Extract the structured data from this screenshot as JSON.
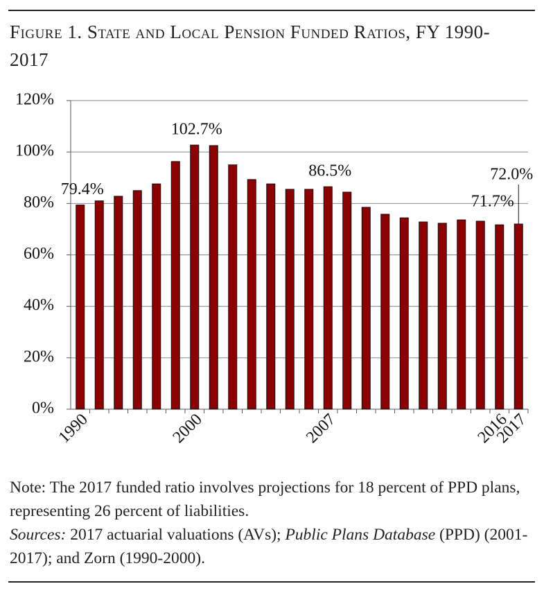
{
  "chart_data": {
    "type": "bar",
    "title": "Figure 1. State and Local Pension Funded Ratios, FY 1990-2017",
    "categories": [
      "1990",
      null,
      null,
      null,
      null,
      null,
      "2000",
      null,
      null,
      null,
      null,
      null,
      null,
      "2007",
      null,
      null,
      null,
      null,
      null,
      null,
      null,
      null,
      "2016",
      "2017"
    ],
    "values": [
      79.4,
      81,
      82.8,
      85,
      87.6,
      96.3,
      102.7,
      102.5,
      95,
      89.3,
      87.6,
      85.5,
      85.5,
      86.5,
      84.4,
      78.5,
      75.8,
      74.4,
      72.8,
      72.3,
      73.6,
      73.1,
      71.7,
      72.0
    ],
    "value_labels": [
      "79.4%",
      null,
      null,
      null,
      null,
      null,
      "102.7%",
      null,
      null,
      null,
      null,
      null,
      null,
      "86.5%",
      null,
      null,
      null,
      null,
      null,
      null,
      null,
      null,
      "71.7%",
      "72.0%"
    ],
    "color": "#8b0000",
    "ylim": [
      0,
      120
    ],
    "yticks": [
      {
        "value": 0,
        "label": "0%"
      },
      {
        "value": 20,
        "label": "20%"
      },
      {
        "value": 40,
        "label": "40%"
      },
      {
        "value": 60,
        "label": "60%"
      },
      {
        "value": 80,
        "label": "80%"
      },
      {
        "value": 100,
        "label": "100%"
      },
      {
        "value": 120,
        "label": "120%"
      }
    ],
    "grid": true,
    "note": "Note: The 2017 funded ratio involves projections for 18 percent of PPD plans, representing 26 percent of liabilities.",
    "sources": [
      "Sources:",
      " 2017 actuarial valuations (AVs); ",
      "Public Plans Database",
      " (PPD) (2001-2017); and Zorn (1990-2000)."
    ]
  }
}
